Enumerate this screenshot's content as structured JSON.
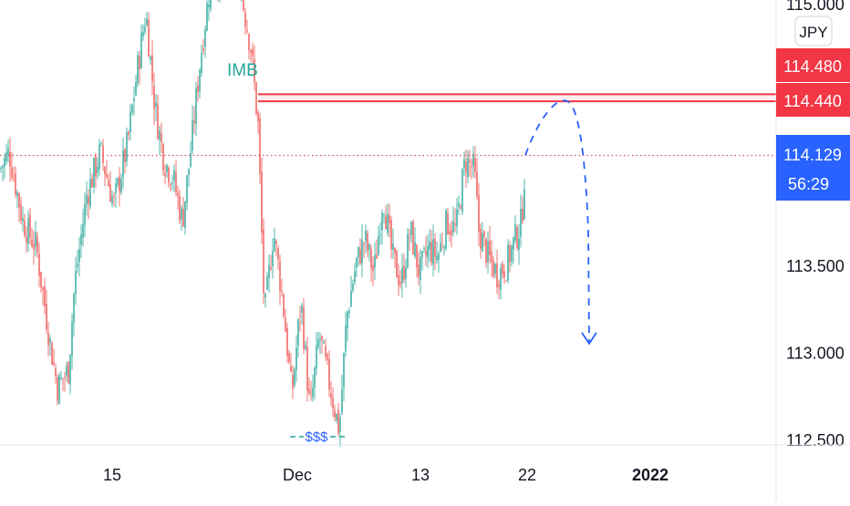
{
  "chart_data": {
    "type": "candlestick",
    "title": "",
    "currency_label": "JPY",
    "ylim": [
      112.45,
      115.05
    ],
    "y_ticks": [
      {
        "value": 115.0,
        "label": "115.000"
      },
      {
        "value": 113.5,
        "label": "113.500"
      },
      {
        "value": 113.0,
        "label": "113.000"
      },
      {
        "value": 112.5,
        "label": "112.500"
      }
    ],
    "x_ticks": [
      "15",
      "Dec",
      "13",
      "22",
      "2022"
    ],
    "price_badges": [
      {
        "value": 114.48,
        "label": "114.480",
        "color": "#f23645"
      },
      {
        "value": 114.44,
        "label": "114.440",
        "color": "#f23645"
      },
      {
        "value": 114.129,
        "label": "114.129",
        "sublabel": "56:29",
        "color": "#2962ff"
      }
    ],
    "current_price": 114.129,
    "zone": {
      "upper": 114.48,
      "lower": 114.44,
      "color": "#f23645"
    },
    "annotations": [
      {
        "text": "IMB",
        "color": "#26a69a"
      },
      {
        "text": "$$$",
        "color": "#2962ff"
      }
    ],
    "projection": {
      "color": "#2962ff",
      "points": [
        [
          114.13,
          114.44
        ],
        [
          114.44,
          113.05
        ]
      ]
    },
    "colors": {
      "up": "#26a69a",
      "down": "#ef5350",
      "grid": "#e0e3eb",
      "text": "#131722"
    }
  }
}
